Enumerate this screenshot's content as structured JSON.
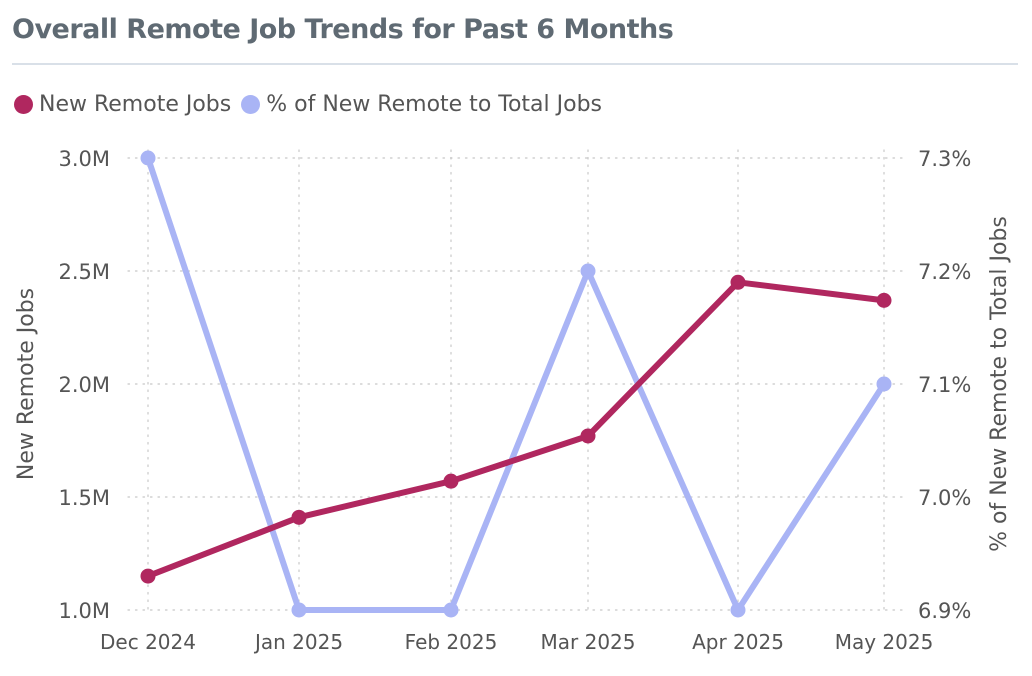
{
  "title": "Overall Remote Job Trends for Past 6 Months",
  "colors": {
    "series1": "#b0275f",
    "series2": "#a9b4f5",
    "grid": "#c8c8c8",
    "text": "#555555"
  },
  "chart_data": {
    "type": "line",
    "categories": [
      "Dec 2024",
      "Jan 2025",
      "Feb 2025",
      "Mar 2025",
      "Apr 2025",
      "May 2025"
    ],
    "series": [
      {
        "name": "New Remote Jobs",
        "axis": "left",
        "values": [
          1.15,
          1.41,
          1.57,
          1.77,
          2.45,
          2.37
        ]
      },
      {
        "name": "% of New Remote to Total Jobs",
        "axis": "right",
        "values": [
          7.3,
          6.9,
          6.9,
          7.2,
          6.9,
          7.1
        ]
      }
    ],
    "y_left": {
      "label": "New Remote Jobs",
      "min": 1.0,
      "max": 3.0,
      "ticks": [
        "1.0M",
        "1.5M",
        "2.0M",
        "2.5M",
        "3.0M"
      ]
    },
    "y_right": {
      "label": "% of New Remote to Total Jobs",
      "min": 6.9,
      "max": 7.3,
      "ticks": [
        "6.9%",
        "7.0%",
        "7.1%",
        "7.2%",
        "7.3%"
      ]
    },
    "grid": true,
    "legend_position": "top-left"
  }
}
